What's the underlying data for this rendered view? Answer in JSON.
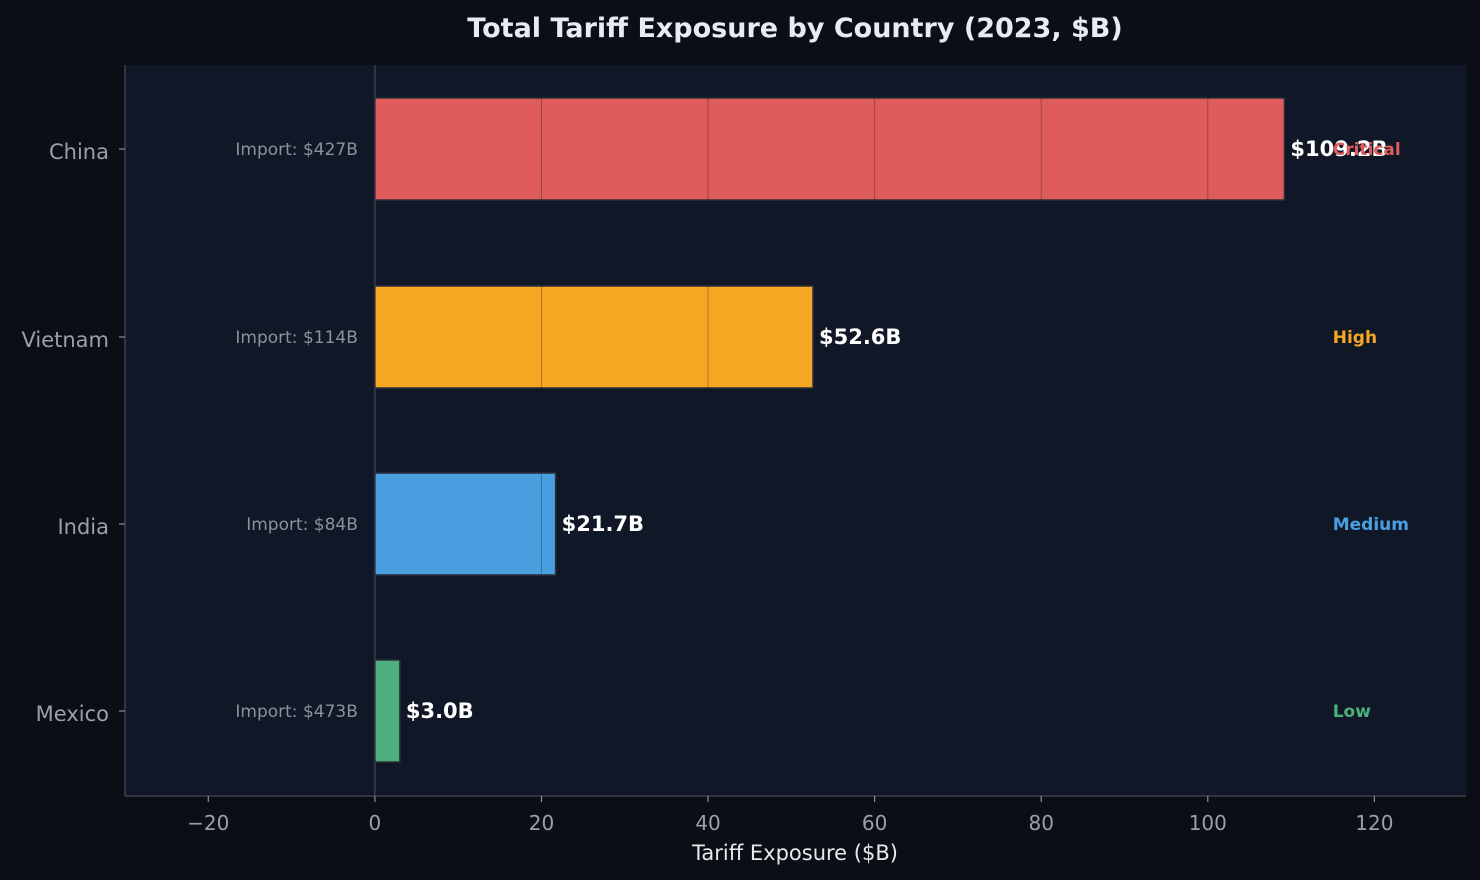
{
  "chart_data": {
    "type": "bar",
    "orientation": "horizontal",
    "title": "Total Tariff Exposure by Country (2023, $B)",
    "xlabel": "Tariff Exposure ($B)",
    "ylabel": "",
    "xlim": [
      -30,
      131
    ],
    "x_ticks": [
      -20,
      0,
      20,
      40,
      60,
      80,
      100,
      120
    ],
    "x_tick_labels": [
      "−20",
      "0",
      "20",
      "40",
      "60",
      "80",
      "100",
      "120"
    ],
    "grid": false,
    "categories": [
      "China",
      "Vietnam",
      "India",
      "Mexico"
    ],
    "values": [
      109.2,
      52.6,
      21.7,
      3.0
    ],
    "value_labels": [
      "$109.2B",
      "$52.6B",
      "$21.7B",
      "$3.0B"
    ],
    "import_labels": [
      "Import: $427B",
      "Import: $114B",
      "Import: $84B",
      "Import: $473B"
    ],
    "risk_labels": [
      "Critical",
      "High",
      "Medium",
      "Low"
    ],
    "risk_label_x": 115,
    "segment_step": 20,
    "colors": [
      "#e05c5c",
      "#f5a623",
      "#4a9fe0",
      "#4caf7d"
    ],
    "background": "#0b0e14",
    "plot_background": "#101828",
    "text_color": "#e8ecf2",
    "muted_text_color": "#9aa0aa"
  }
}
